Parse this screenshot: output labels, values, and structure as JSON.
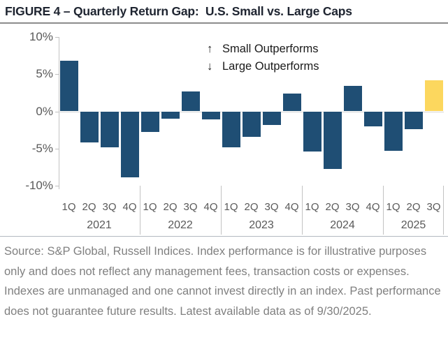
{
  "title": "FIGURE 4 – Quarterly Return Gap:  U.S. Small vs. Large Caps",
  "source_text": "Source: S&P Global, Russell Indices. Index performance is for illustrative purposes only and does not reflect any management fees, transaction costs or expenses. Indexes are unmanaged and one cannot invest directly in an index. Past performance does not guarantee future results. Latest available data as of 9/30/2025.",
  "colors": {
    "bar_blue": "#1f4e74",
    "highlight_yellow": "#fcd75e",
    "axis_text_gray": "#595959",
    "source_gray": "#808080",
    "title_dark": "#1e2430",
    "line_light_gray": "#c3c3c3"
  },
  "chart_data": {
    "type": "bar",
    "title": "FIGURE 4 – Quarterly Return Gap: U.S. Small vs. Large Caps",
    "xlabel": "",
    "ylabel": "",
    "ylim": [
      -10,
      10
    ],
    "grid": false,
    "y_ticks": [
      {
        "label": "10%",
        "value": 10
      },
      {
        "label": "5%",
        "value": 5
      },
      {
        "label": "0%",
        "value": 0
      },
      {
        "label": "-5%",
        "value": -5
      },
      {
        "label": "-10%",
        "value": -10
      }
    ],
    "annotations": [
      "Small Outperforms",
      "Large Outperforms"
    ],
    "annotation_arrows": [
      "↑",
      "↓"
    ],
    "legend_position": "top-center-inside-plot",
    "bar_color": "#1f4e74",
    "highlight": {
      "year": "2025",
      "quarter": "3Q",
      "color": "#fcd75e"
    },
    "groups": [
      {
        "year": "2021",
        "quarters": [
          "1Q",
          "2Q",
          "3Q",
          "4Q"
        ],
        "values": [
          6.8,
          -4.2,
          -4.8,
          -8.9
        ]
      },
      {
        "year": "2022",
        "quarters": [
          "1Q",
          "2Q",
          "3Q",
          "4Q"
        ],
        "values": [
          -2.8,
          -1.0,
          2.7,
          -1.1
        ]
      },
      {
        "year": "2023",
        "quarters": [
          "1Q",
          "2Q",
          "3Q",
          "4Q"
        ],
        "values": [
          -4.8,
          -3.4,
          -1.8,
          2.4
        ]
      },
      {
        "year": "2024",
        "quarters": [
          "1Q",
          "2Q",
          "3Q",
          "4Q"
        ],
        "values": [
          -5.4,
          -7.7,
          3.4,
          -2.0
        ]
      },
      {
        "year": "2025",
        "quarters": [
          "1Q",
          "2Q",
          "3Q"
        ],
        "values": [
          -5.3,
          -2.4,
          4.2
        ]
      }
    ]
  }
}
